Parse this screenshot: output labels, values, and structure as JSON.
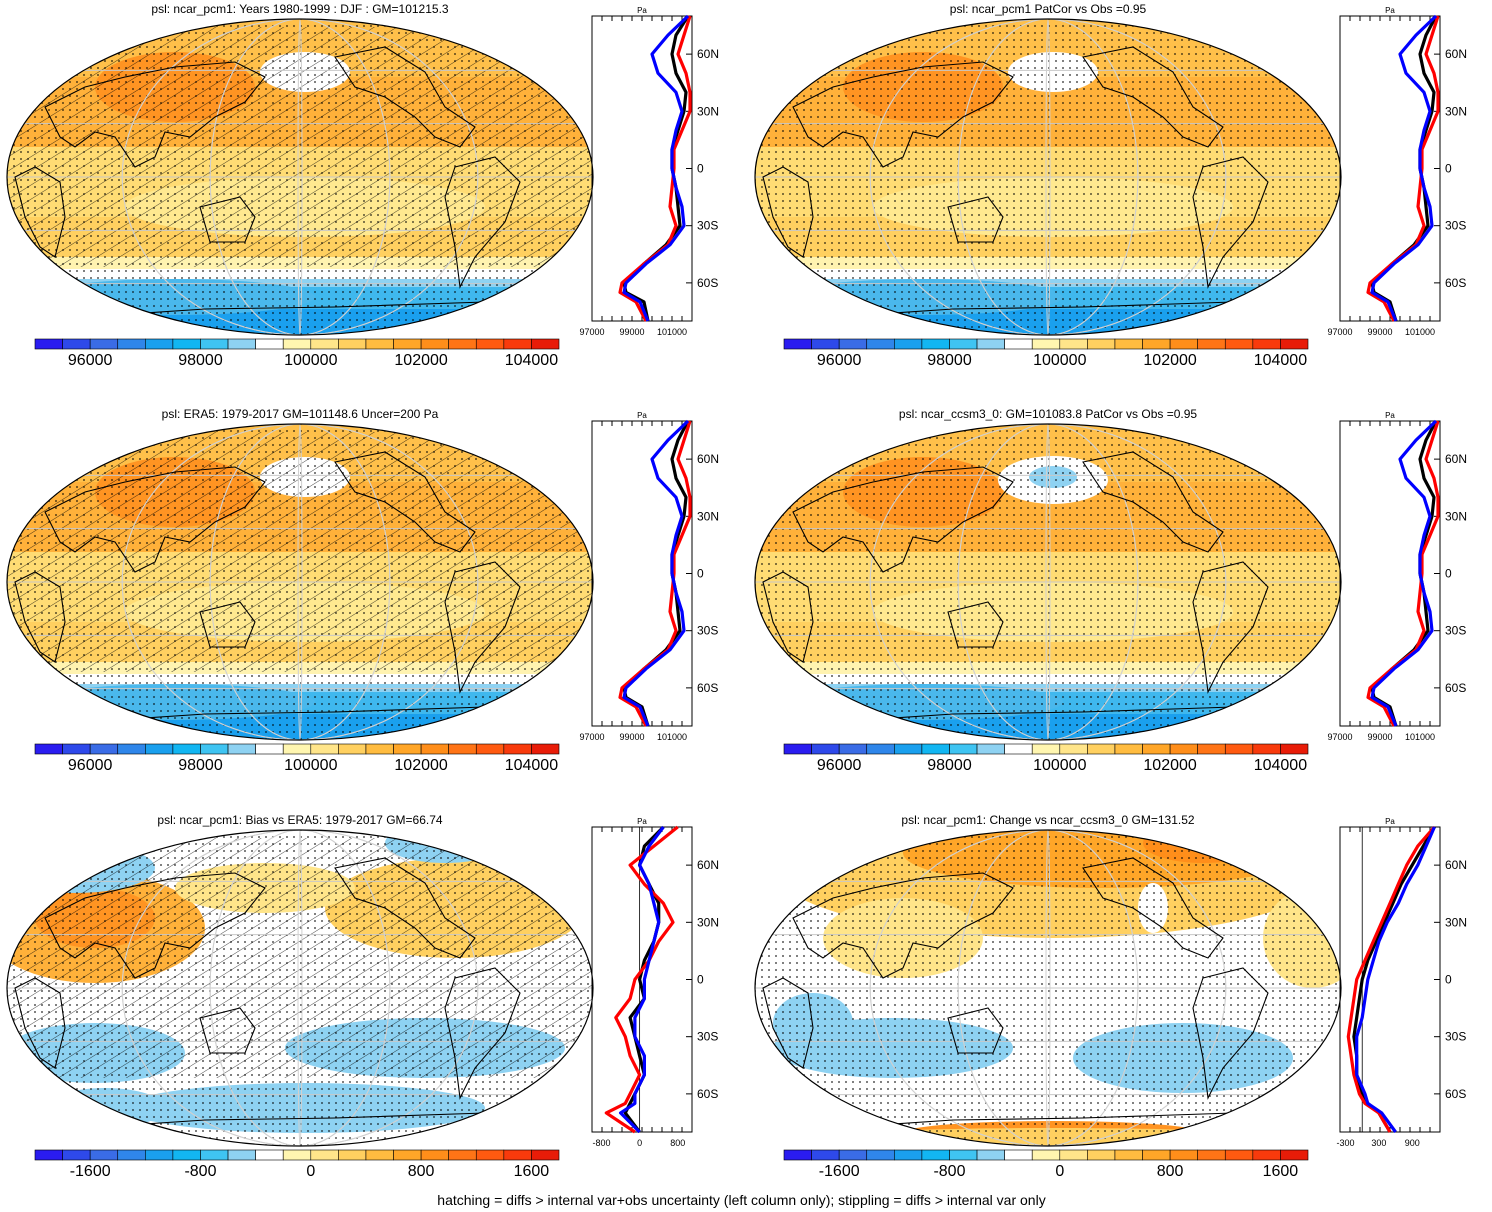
{
  "footer": "hatching = diffs > internal var+obs uncertainty (left column only); stippling = diffs > internal var only",
  "colors": {
    "obs": "#000000",
    "model_pcm1": "#ff0000",
    "model_ccsm3": "#0000ff"
  },
  "full_field_colorbar": {
    "labels": [
      "96000",
      "98000",
      "100000",
      "102000",
      "104000"
    ],
    "colors": [
      "#2a1cf0",
      "#2e49ea",
      "#3a6ce6",
      "#2f86ea",
      "#1aa0ee",
      "#12b6f2",
      "#3fc4f2",
      "#8ed2f2",
      "#ffffff",
      "#fff6b0",
      "#ffe58a",
      "#ffd060",
      "#ffbc40",
      "#ffa628",
      "#ff8e1a",
      "#ff7416",
      "#ff5a10",
      "#f83a0c",
      "#e81c08"
    ]
  },
  "diff_colorbar": {
    "labels": [
      "-1600",
      "-800",
      "0",
      "800",
      "1600"
    ],
    "colors": [
      "#2a1cf0",
      "#2e49ea",
      "#3a6ce6",
      "#2f86ea",
      "#1aa0ee",
      "#12b6f2",
      "#3fc4f2",
      "#8ed2f2",
      "#ffffff",
      "#fff6b0",
      "#ffe58a",
      "#ffd060",
      "#ffbc40",
      "#ffa628",
      "#ff8e1a",
      "#ff7416",
      "#ff5a10",
      "#f83a0c",
      "#e81c08"
    ]
  },
  "chart_data": [
    {
      "type": "map",
      "title": "psl: ncar_pcm1: Years 1980-1999 : DJF : GM=101215.3",
      "field": "full",
      "hatched": true,
      "profile": {
        "unit": "Pa",
        "xticks": [
          "97000",
          "99000",
          "101000"
        ],
        "xlim": [
          97000,
          102000
        ],
        "lat_ticks": [
          "60N",
          "30N",
          "0",
          "30S",
          "60S"
        ],
        "lat": [
          -80,
          -70,
          -65,
          -60,
          -50,
          -40,
          -30,
          -20,
          -10,
          0,
          10,
          20,
          30,
          40,
          50,
          60,
          70,
          80
        ],
        "series": [
          {
            "color": "black",
            "values": [
              99800,
              99600,
              98700,
              98600,
              99600,
              100700,
              101400,
              101300,
              101200,
              101000,
              101000,
              101300,
              101600,
              101700,
              101200,
              101000,
              101200,
              101800
            ]
          },
          {
            "color": "red",
            "values": [
              99700,
              99200,
              98400,
              98500,
              99600,
              100800,
              101200,
              100900,
              101000,
              101100,
              101100,
              101500,
              101900,
              101900,
              101700,
              101300,
              101600,
              101900
            ]
          },
          {
            "color": "blue",
            "values": [
              99800,
              99400,
              98600,
              98700,
              99700,
              100900,
              101600,
              101500,
              101200,
              101000,
              101000,
              101200,
              101500,
              101200,
              100300,
              100000,
              100800,
              101800
            ]
          }
        ]
      }
    },
    {
      "type": "map",
      "title": "psl: ncar_pcm1 PatCor vs Obs =0.95",
      "field": "full",
      "hatched": false,
      "profile": {
        "unit": "Pa",
        "xticks": [
          "97000",
          "99000",
          "101000"
        ],
        "xlim": [
          97000,
          102000
        ],
        "lat_ticks": [
          "60N",
          "30N",
          "0",
          "30S",
          "60S"
        ],
        "lat": [
          -80,
          -70,
          -65,
          -60,
          -50,
          -40,
          -30,
          -20,
          -10,
          0,
          10,
          20,
          30,
          40,
          50,
          60,
          70,
          80
        ],
        "series": [
          {
            "color": "black",
            "values": [
              99800,
              99500,
              98700,
              98600,
              99600,
              100700,
              101400,
              101300,
              101200,
              101000,
              101000,
              101300,
              101600,
              101700,
              101200,
              101000,
              101300,
              101800
            ]
          },
          {
            "color": "red",
            "values": [
              99700,
              99200,
              98400,
              98500,
              99600,
              100800,
              101200,
              100900,
              101000,
              101100,
              101100,
              101500,
              101900,
              101900,
              101700,
              101300,
              101600,
              101900
            ]
          },
          {
            "color": "blue",
            "values": [
              99800,
              99400,
              98600,
              98700,
              99700,
              100900,
              101600,
              101500,
              101200,
              101000,
              101000,
              101200,
              101500,
              101200,
              100300,
              100000,
              100800,
              101800
            ]
          }
        ]
      }
    },
    {
      "type": "map",
      "title": "psl: ERA5: 1979-2017 GM=101148.6 Uncer=200 Pa",
      "field": "full",
      "hatched": true,
      "profile": {
        "unit": "Pa",
        "xticks": [
          "97000",
          "99000",
          "101000"
        ],
        "xlim": [
          97000,
          102000
        ],
        "lat_ticks": [
          "60N",
          "30N",
          "0",
          "30S",
          "60S"
        ],
        "lat": [
          -80,
          -70,
          -65,
          -60,
          -50,
          -40,
          -30,
          -20,
          -10,
          0,
          10,
          20,
          30,
          40,
          50,
          60,
          70,
          80
        ],
        "series": [
          {
            "color": "black",
            "values": [
              99800,
              99500,
              98700,
              98600,
              99600,
              100700,
              101400,
              101300,
              101200,
              101000,
              101000,
              101300,
              101600,
              101700,
              101200,
              101000,
              101300,
              101800
            ]
          },
          {
            "color": "red",
            "values": [
              99700,
              99200,
              98400,
              98500,
              99600,
              100800,
              101200,
              100900,
              101000,
              101100,
              101100,
              101500,
              101900,
              101900,
              101700,
              101300,
              101600,
              101900
            ]
          },
          {
            "color": "blue",
            "values": [
              99800,
              99400,
              98600,
              98700,
              99700,
              100900,
              101600,
              101500,
              101200,
              101000,
              101000,
              101200,
              101500,
              101200,
              100300,
              100000,
              100800,
              101800
            ]
          }
        ]
      }
    },
    {
      "type": "map",
      "title": "psl: ncar_ccsm3_0: GM=101083.8 PatCor vs Obs =0.95",
      "field": "full",
      "hatched": false,
      "profile": {
        "unit": "Pa",
        "xticks": [
          "97000",
          "99000",
          "101000"
        ],
        "xlim": [
          97000,
          102000
        ],
        "lat_ticks": [
          "60N",
          "30N",
          "0",
          "30S",
          "60S"
        ],
        "lat": [
          -80,
          -70,
          -65,
          -60,
          -50,
          -40,
          -30,
          -20,
          -10,
          0,
          10,
          20,
          30,
          40,
          50,
          60,
          70,
          80
        ],
        "series": [
          {
            "color": "black",
            "values": [
              99800,
              99500,
              98700,
              98600,
              99600,
              100700,
              101400,
              101300,
              101200,
              101000,
              101000,
              101300,
              101600,
              101700,
              101200,
              101000,
              101300,
              101800
            ]
          },
          {
            "color": "red",
            "values": [
              99700,
              99200,
              98400,
              98500,
              99600,
              100800,
              101200,
              100900,
              101000,
              101100,
              101100,
              101500,
              101900,
              101900,
              101700,
              101300,
              101600,
              101900
            ]
          },
          {
            "color": "blue",
            "values": [
              99800,
              99400,
              98600,
              98700,
              99700,
              100900,
              101600,
              101500,
              101200,
              101000,
              101000,
              101200,
              101500,
              101200,
              100300,
              100000,
              100800,
              101800
            ]
          }
        ]
      }
    },
    {
      "type": "map",
      "title": "psl: ncar_pcm1: Bias vs ERA5: 1979-2017 GM=66.74",
      "field": "diff",
      "hatched": true,
      "profile": {
        "unit": "Pa",
        "xticks": [
          "-800",
          "0",
          "800"
        ],
        "xlim": [
          -1000,
          1100
        ],
        "lat_ticks": [
          "60N",
          "30N",
          "0",
          "30S",
          "60S"
        ],
        "lat": [
          -80,
          -70,
          -65,
          -60,
          -50,
          -40,
          -30,
          -20,
          -10,
          0,
          10,
          20,
          30,
          40,
          50,
          60,
          70,
          80
        ],
        "series": [
          {
            "color": "black",
            "values": [
              0,
              -300,
              -200,
              -100,
              100,
              0,
              -100,
              -200,
              100,
              0,
              100,
              300,
              400,
              400,
              200,
              0,
              100,
              500
            ]
          },
          {
            "color": "red",
            "values": [
              -100,
              -700,
              -300,
              -200,
              0,
              -200,
              -300,
              -500,
              -200,
              -100,
              200,
              400,
              700,
              500,
              100,
              -200,
              300,
              800
            ]
          },
          {
            "color": "blue",
            "values": [
              0,
              -400,
              -100,
              -100,
              100,
              100,
              -100,
              -100,
              100,
              100,
              200,
              300,
              400,
              300,
              200,
              0,
              200,
              500
            ]
          }
        ]
      }
    },
    {
      "type": "map",
      "title": "psl: ncar_pcm1: Change vs ncar_ccsm3_0 GM=131.52",
      "field": "diff",
      "hatched": false,
      "profile": {
        "unit": "Pa",
        "xticks": [
          "-300",
          "300",
          "900"
        ],
        "xlim": [
          -400,
          1400
        ],
        "lat_ticks": [
          "60N",
          "30N",
          "0",
          "30S",
          "60S"
        ],
        "lat": [
          -80,
          -70,
          -65,
          -60,
          -50,
          -40,
          -30,
          -20,
          -10,
          0,
          10,
          20,
          30,
          40,
          50,
          60,
          70,
          80
        ],
        "series": [
          {
            "color": "black",
            "values": [
              500,
              300,
              100,
              0,
              -100,
              -100,
              -150,
              -100,
              -50,
              0,
              100,
              250,
              400,
              550,
              700,
              900,
              1100,
              1300
            ]
          },
          {
            "color": "red",
            "values": [
              500,
              300,
              50,
              -50,
              -150,
              -200,
              -250,
              -200,
              -150,
              -100,
              50,
              200,
              350,
              500,
              650,
              800,
              1000,
              1300
            ]
          },
          {
            "color": "blue",
            "values": [
              600,
              350,
              100,
              50,
              -100,
              -100,
              -100,
              0,
              50,
              100,
              200,
              300,
              450,
              650,
              800,
              1000,
              1150,
              1300
            ]
          }
        ]
      }
    }
  ]
}
